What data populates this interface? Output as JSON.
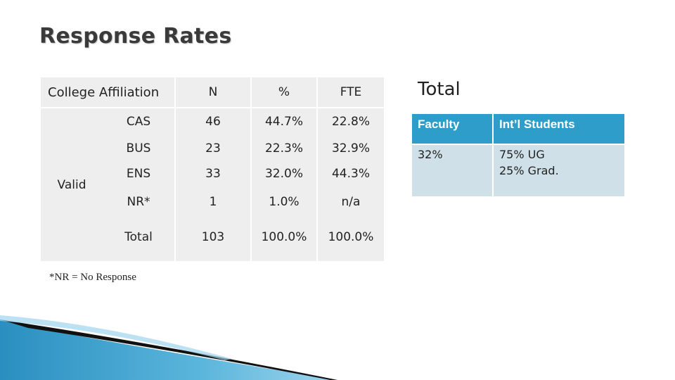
{
  "title": "Response Rates",
  "affiliation_table": {
    "header": {
      "affiliation": "College Affiliation",
      "n": "N",
      "pct": "%",
      "fte": "FTE"
    },
    "group_label": "Valid",
    "rows": [
      {
        "college": "CAS",
        "n": "46",
        "pct": "44.7%",
        "fte": "22.8%"
      },
      {
        "college": "BUS",
        "n": "23",
        "pct": "22.3%",
        "fte": "32.9%"
      },
      {
        "college": "ENS",
        "n": "33",
        "pct": "32.0%",
        "fte": "44.3%"
      },
      {
        "college": "NR*",
        "n": "1",
        "pct": "1.0%",
        "fte": "n/a"
      },
      {
        "college": "Total",
        "n": "103",
        "pct": "100.0%",
        "fte": "100.0%"
      }
    ],
    "footnote": "*NR = No Response"
  },
  "total_section": {
    "heading": "Total",
    "headers": {
      "faculty": "Faculty",
      "intl": "Int’l Students"
    },
    "faculty_value": "32%",
    "intl_ug": "75% UG",
    "intl_grad": "25% Grad."
  },
  "colors": {
    "table_bg": "#eeeeee",
    "header_accent": "#2f9dc9",
    "right_body_bg": "#cfe0e8"
  }
}
